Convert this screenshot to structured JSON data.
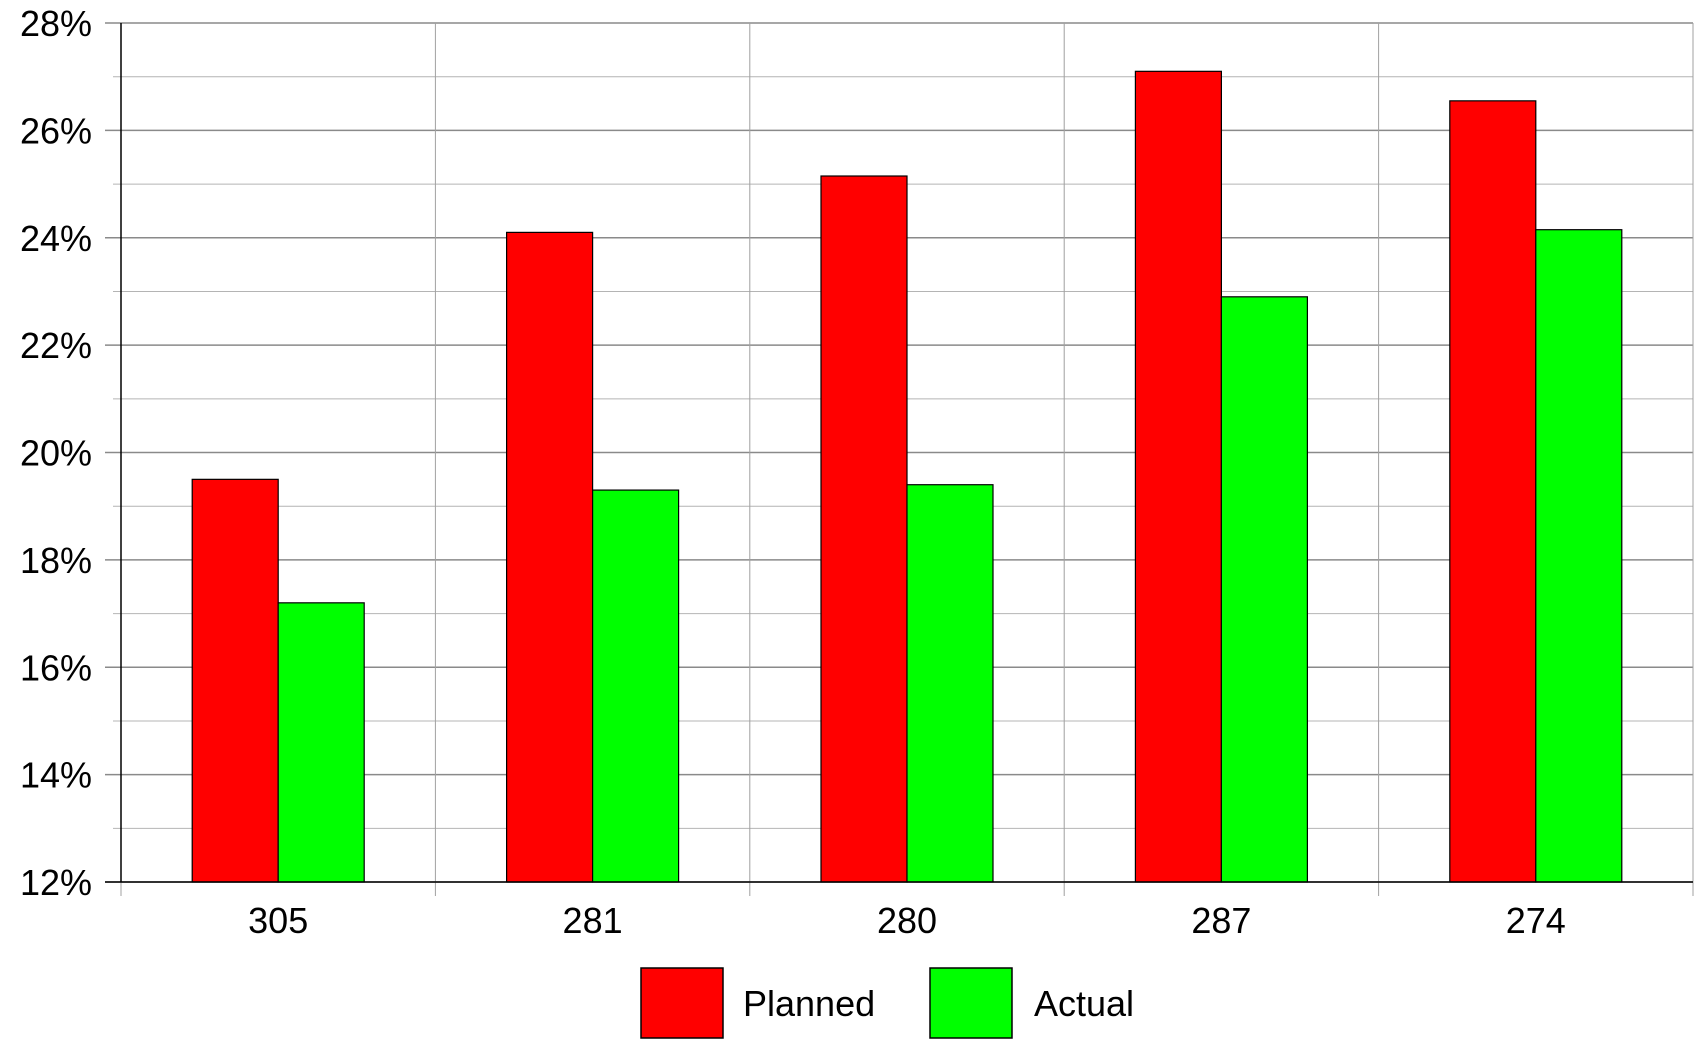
{
  "chart_data": {
    "type": "bar",
    "categories": [
      "305",
      "281",
      "280",
      "287",
      "274"
    ],
    "series": [
      {
        "name": "Planned",
        "color": "#ff0000",
        "values": [
          19.5,
          24.1,
          25.15,
          27.1,
          26.55
        ]
      },
      {
        "name": "Actual",
        "color": "#00ff00",
        "values": [
          17.2,
          19.3,
          19.4,
          22.9,
          24.15
        ]
      }
    ],
    "ylim": [
      12,
      28
    ],
    "yticks": [
      12,
      14,
      16,
      18,
      20,
      22,
      24,
      26,
      28
    ],
    "ytick_format": "%",
    "y_minor_step": 1,
    "grid": true,
    "legend_position": "bottom-center",
    "xlabel": "",
    "ylabel": "",
    "title": ""
  }
}
